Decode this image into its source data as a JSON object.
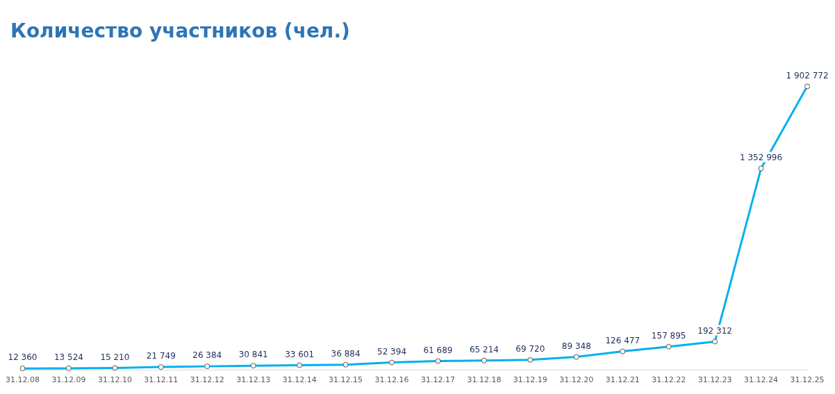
{
  "chart_data": {
    "type": "line",
    "title": "Количество участников (чел.)",
    "categories": [
      "31.12.08",
      "31.12.09",
      "31.12.10",
      "31.12.11",
      "31.12.12",
      "31.12.13",
      "31.12.14",
      "31.12.15",
      "31.12.16",
      "31.12.17",
      "31.12.18",
      "31.12.19",
      "31.12.20",
      "31.12.21",
      "31.12.22",
      "31.12.23",
      "31.12.24",
      "31.12.25"
    ],
    "series": [
      {
        "color": "#00b0f0",
        "values": [
          12360,
          13524,
          15210,
          21749,
          26384,
          30841,
          33601,
          36884,
          52394,
          61689,
          65214,
          69720,
          89348,
          126477,
          157895,
          192312,
          1352996,
          1902772
        ],
        "value_labels": [
          "12 360",
          "13 524",
          "15 210",
          "21 749",
          "26 384",
          "30 841",
          "33 601",
          "36 884",
          "52 394",
          "61 689",
          "65 214",
          "69 720",
          "89 348",
          "126 477",
          "157 895",
          "192 312",
          "1 352 996",
          "1 902 772"
        ]
      }
    ],
    "marker": "circle",
    "line_style": "solid",
    "grid": false,
    "legend": false,
    "tick_labels": "x"
  }
}
